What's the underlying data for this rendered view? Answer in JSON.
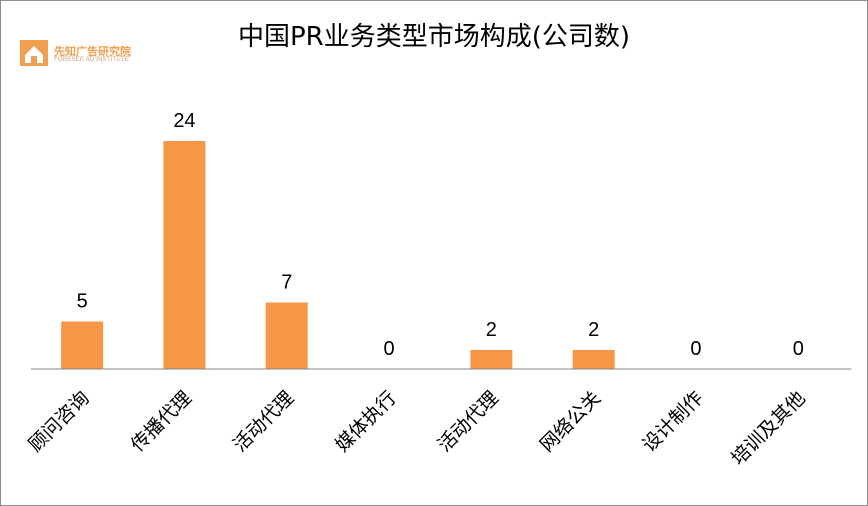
{
  "header": {
    "title": "中国PR业务类型市场构成(公司数)",
    "logo_cn": "先知广告研究院",
    "logo_en": "FORESEE AD INSTITUTE"
  },
  "colors": {
    "bar": "#f79646",
    "axis": "#868686",
    "logo": "#f0a050"
  },
  "chart_data": {
    "type": "bar",
    "title": "中国PR业务类型市场构成(公司数)",
    "categories": [
      "顾问咨询",
      "传播代理",
      "活动代理",
      "媒体执行",
      "活动代理",
      "网络公关",
      "设计制作",
      "培训及其他"
    ],
    "values": [
      5,
      24,
      7,
      0,
      2,
      2,
      0,
      0
    ],
    "xlabel": "",
    "ylabel": "",
    "ylim": [
      0,
      24
    ],
    "grid": false,
    "legend": "none",
    "data_labels": true
  }
}
